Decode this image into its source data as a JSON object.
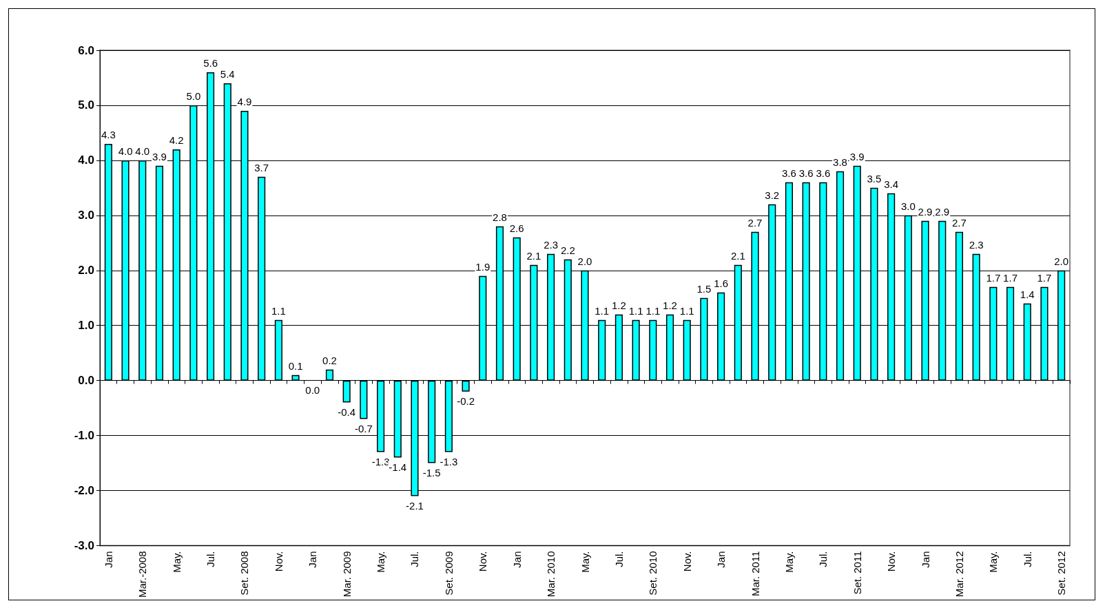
{
  "chart_data": {
    "type": "bar",
    "categories": [
      "Jan",
      null,
      "Mar.-2008",
      null,
      "May.",
      null,
      "Jul.",
      null,
      "Set. 2008",
      null,
      "Nov.",
      null,
      "Jan",
      null,
      "Mar. 2009",
      null,
      "May.",
      null,
      "Jul.",
      null,
      "Set. 2009",
      null,
      "Nov.",
      null,
      "Jan",
      null,
      "Mar. 2010",
      null,
      "May.",
      null,
      "Jul.",
      null,
      "Set. 2010",
      null,
      "Nov.",
      null,
      "Jan",
      null,
      "Mar. 2011",
      null,
      "May.",
      null,
      "Jul.",
      null,
      "Set. 2011",
      null,
      "Nov.",
      null,
      "Jan",
      null,
      "Mar. 2012",
      null,
      "May.",
      null,
      "Jul.",
      null,
      "Set. 2012"
    ],
    "values": [
      4.3,
      4.0,
      4.0,
      3.9,
      4.2,
      5.0,
      5.6,
      5.4,
      4.9,
      3.7,
      1.1,
      0.1,
      0.0,
      0.2,
      -0.4,
      -0.7,
      -1.3,
      -1.4,
      -2.1,
      -1.5,
      -1.3,
      -0.2,
      1.9,
      2.8,
      2.6,
      2.1,
      2.3,
      2.2,
      2.0,
      1.1,
      1.2,
      1.1,
      1.1,
      1.2,
      1.1,
      1.5,
      1.6,
      2.1,
      2.7,
      3.2,
      3.6,
      3.6,
      3.6,
      3.8,
      3.9,
      3.5,
      3.4,
      3.0,
      2.9,
      2.9,
      2.7,
      2.3,
      1.7,
      1.7,
      1.4,
      1.7,
      2.0
    ],
    "color": "#00ffff",
    "ylim": [
      -3,
      6
    ],
    "yticks": [
      {
        "value": -3,
        "label": "-3.0"
      },
      {
        "value": -2,
        "label": "-2.0"
      },
      {
        "value": -1,
        "label": "-1.0"
      },
      {
        "value": 0,
        "label": "0.0"
      },
      {
        "value": 1,
        "label": "1.0"
      },
      {
        "value": 2,
        "label": "2.0"
      },
      {
        "value": 3,
        "label": "3.0"
      },
      {
        "value": 4,
        "label": "4.0"
      },
      {
        "value": 5,
        "label": "5.0"
      },
      {
        "value": 6,
        "label": "6.0"
      }
    ],
    "value_labels": [
      "4.3",
      "4.0",
      "4.0",
      "3.9",
      "4.2",
      "5.0",
      "5.6",
      "5.4",
      "4.9",
      "3.7",
      "1.1",
      "0.1",
      "0.0",
      "0.2",
      "-0.4",
      "-0.7",
      "-1.3",
      "-1.4",
      "-2.1",
      "-1.5",
      "-1.3",
      "-0.2",
      "1.9",
      "2.8",
      "2.6",
      "2.1",
      "2.3",
      "2.2",
      "2.0",
      "1.1",
      "1.2",
      "1.1",
      "1.1",
      "1.2",
      "1.1",
      "1.5",
      "1.6",
      "2.1",
      "2.7",
      "3.2",
      "3.6",
      "3.6",
      "3.6",
      "3.8",
      "3.9",
      "3.5",
      "3.4",
      "3.0",
      "2.9",
      "2.9",
      "2.7",
      "2.3",
      "1.7",
      "1.7",
      "1.4",
      "1.7",
      "2.0"
    ],
    "grid": "y"
  }
}
